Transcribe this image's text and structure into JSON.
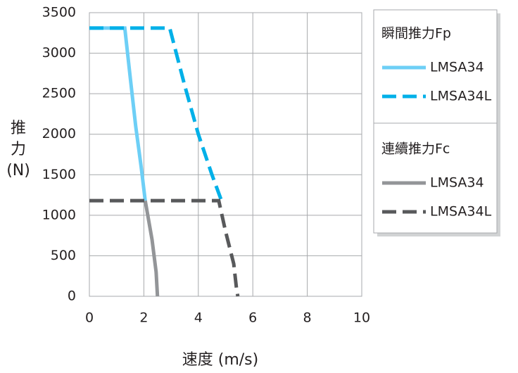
{
  "chart_data": {
    "type": "line",
    "x_label": "速度 (m/s)",
    "y_label": "推力(N)",
    "xlim": [
      0,
      10
    ],
    "xticks": [
      0,
      2,
      4,
      6,
      8,
      10
    ],
    "ylim": [
      0,
      3500
    ],
    "yticks": [
      0,
      500,
      1000,
      1500,
      2000,
      2500,
      3000,
      3500
    ],
    "grid": true,
    "series_groups": [
      {
        "name": "瞬間推力Fp",
        "series": [
          {
            "name": "LMSA34",
            "color": "#6dcff6",
            "dashed": false,
            "x": [
              0,
              1.3,
              1.5,
              1.7,
              1.9,
              2.05
            ],
            "y": [
              3310,
              3310,
              2700,
              2100,
              1600,
              1180
            ]
          },
          {
            "name": "LMSA34L",
            "color": "#00b0e8",
            "dashed": true,
            "x": [
              0,
              2.95,
              3.5,
              4.0,
              4.5,
              4.85
            ],
            "y": [
              3310,
              3310,
              2600,
              2000,
              1500,
              1180
            ]
          }
        ]
      },
      {
        "name": "連續推力Fc",
        "series": [
          {
            "name": "LMSA34",
            "color": "#939598",
            "dashed": false,
            "x": [
              2.05,
              2.3,
              2.45,
              2.5
            ],
            "y": [
              1180,
              700,
              300,
              0
            ]
          },
          {
            "name": "LMSA34L",
            "color": "#58595b",
            "dashed": true,
            "x": [
              0,
              4.75,
              5.0,
              5.3,
              5.4,
              5.45
            ],
            "y": [
              1180,
              1180,
              800,
              400,
              100,
              0
            ]
          }
        ]
      }
    ]
  }
}
